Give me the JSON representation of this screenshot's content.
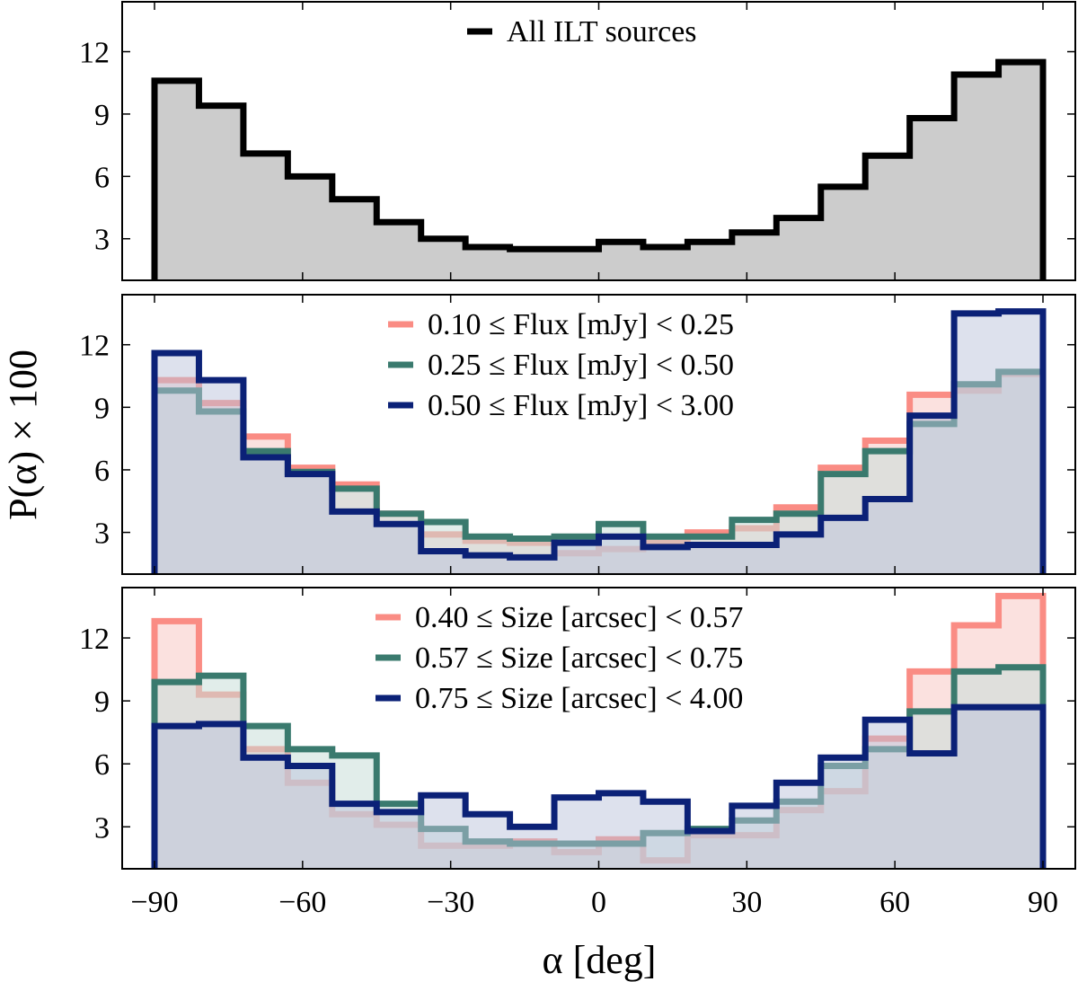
{
  "chart_data": [
    {
      "type": "histogram",
      "bin_edges": [
        -90,
        -81,
        -72,
        -63,
        -54,
        -45,
        -36,
        -27,
        -18,
        -9,
        0,
        9,
        18,
        27,
        36,
        45,
        54,
        63,
        72,
        81,
        90
      ],
      "xlim": [
        -90,
        90
      ],
      "ylim": [
        1,
        14.4
      ],
      "yticks": [
        3,
        6,
        9,
        12
      ],
      "legend_position": "top-center",
      "series": [
        {
          "name": "All ILT sources",
          "color": "#000000",
          "fill": "#cccccc",
          "values": [
            10.6,
            9.4,
            7.1,
            6.0,
            4.9,
            3.8,
            3.0,
            2.6,
            2.5,
            2.5,
            2.85,
            2.6,
            2.85,
            3.3,
            4.0,
            5.5,
            7.0,
            8.8,
            10.9,
            11.5
          ]
        }
      ]
    },
    {
      "type": "histogram",
      "bin_edges": [
        -90,
        -81,
        -72,
        -63,
        -54,
        -45,
        -36,
        -27,
        -18,
        -9,
        0,
        9,
        18,
        27,
        36,
        45,
        54,
        63,
        72,
        81,
        90
      ],
      "xlim": [
        -90,
        90
      ],
      "ylim": [
        1,
        14.4
      ],
      "yticks": [
        3,
        6,
        9,
        12
      ],
      "legend_position": "top-center",
      "series": [
        {
          "name": "0.10 ≤ Flux [mJy] < 0.25",
          "color": "#fa8c84",
          "fill": "#fadcd9",
          "values": [
            10.3,
            9.2,
            7.6,
            6.1,
            5.3,
            3.9,
            2.9,
            2.6,
            2.5,
            2.0,
            2.2,
            2.5,
            3.0,
            3.2,
            4.2,
            6.1,
            7.4,
            9.6,
            9.8,
            10.6
          ]
        },
        {
          "name": "0.25 ≤ Flux [mJy] < 0.50",
          "color": "#3a7a6e",
          "fill": "#c8ded9",
          "values": [
            9.8,
            8.8,
            6.9,
            5.9,
            5.1,
            3.9,
            3.5,
            2.8,
            2.7,
            2.8,
            3.4,
            2.8,
            2.8,
            3.6,
            3.9,
            5.8,
            6.9,
            8.2,
            10.1,
            10.7
          ]
        },
        {
          "name": "0.50 ≤ Flux [mJy] < 3.00",
          "color": "#0b2177",
          "fill": "#bcc4dc",
          "values": [
            11.6,
            10.3,
            6.6,
            5.8,
            4.0,
            3.4,
            2.1,
            1.9,
            1.8,
            2.5,
            2.8,
            2.3,
            2.4,
            2.4,
            2.9,
            3.7,
            4.6,
            8.6,
            13.5,
            13.6
          ]
        }
      ]
    },
    {
      "type": "histogram",
      "bin_edges": [
        -90,
        -81,
        -72,
        -63,
        -54,
        -45,
        -36,
        -27,
        -18,
        -9,
        0,
        9,
        18,
        27,
        36,
        45,
        54,
        63,
        72,
        81,
        90
      ],
      "xlim": [
        -90,
        90
      ],
      "ylim": [
        1,
        14.4
      ],
      "yticks": [
        3,
        6,
        9,
        12
      ],
      "xticks": [
        -90,
        -60,
        -30,
        0,
        30,
        60,
        90
      ],
      "xlabel": "α [deg]",
      "legend_position": "top-center",
      "series": [
        {
          "name": "0.40 ≤ Size [arcsec] < 0.57",
          "color": "#fa8c84",
          "fill": "#fadcd9",
          "values": [
            12.8,
            9.3,
            6.7,
            5.1,
            3.6,
            3.1,
            2.1,
            2.1,
            2.3,
            1.8,
            2.4,
            1.4,
            2.6,
            2.6,
            3.8,
            4.7,
            7.2,
            10.4,
            12.6,
            14.0
          ]
        },
        {
          "name": "0.57 ≤ Size [arcsec] < 0.75",
          "color": "#3a7a6e",
          "fill": "#c8ded9",
          "values": [
            9.9,
            10.2,
            7.8,
            6.7,
            6.4,
            4.1,
            2.9,
            2.3,
            2.2,
            2.2,
            2.2,
            2.7,
            2.9,
            3.3,
            4.2,
            5.9,
            6.7,
            8.5,
            10.4,
            10.6
          ]
        },
        {
          "name": "0.75 ≤ Size [arcsec] < 4.00",
          "color": "#0b2177",
          "fill": "#bcc4dc",
          "values": [
            7.8,
            7.9,
            6.3,
            5.9,
            4.1,
            3.7,
            4.5,
            3.6,
            3.0,
            4.4,
            4.6,
            4.2,
            2.8,
            4.0,
            5.1,
            6.3,
            8.1,
            6.5,
            8.7,
            8.7
          ]
        }
      ]
    }
  ],
  "ylabel": "P(α) × 100"
}
